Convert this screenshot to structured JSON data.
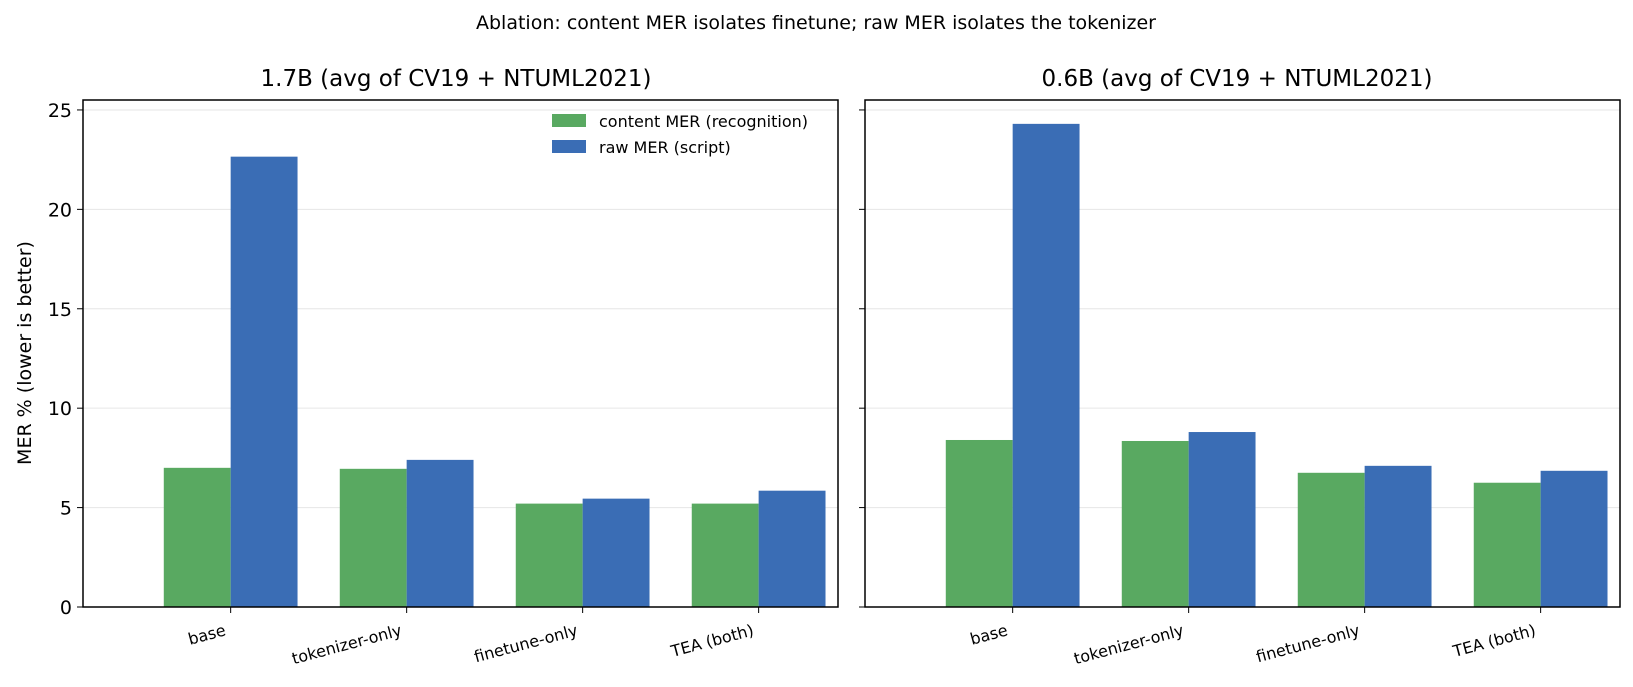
{
  "figure": {
    "title": "Ablation: content MER isolates finetune; raw MER isolates the tokenizer",
    "colors": {
      "content": "#59a961",
      "raw": "#3a6db5",
      "grid": "#e6e6e6",
      "axis": "#000000"
    }
  },
  "chart_data": [
    {
      "type": "bar",
      "title": "1.7B  (avg of CV19 + NTUML2021)",
      "xlabel": "",
      "ylabel": "MER %  (lower is better)",
      "ylim": [
        0,
        25.5
      ],
      "yticks": [
        0,
        5,
        10,
        15,
        20,
        25
      ],
      "grid": "y",
      "legend": "top-right",
      "categories": [
        "base",
        "tokenizer-only",
        "finetune-only",
        "TEA (both)"
      ],
      "series": [
        {
          "name": "content MER (recognition)",
          "values": [
            7.0,
            6.95,
            5.2,
            5.2
          ]
        },
        {
          "name": "raw MER (script)",
          "values": [
            22.65,
            7.4,
            5.45,
            5.85
          ]
        }
      ]
    },
    {
      "type": "bar",
      "title": "0.6B  (avg of CV19 + NTUML2021)",
      "xlabel": "",
      "ylabel": "",
      "ylim": [
        0,
        25.5
      ],
      "yticks": [
        0,
        5,
        10,
        15,
        20,
        25
      ],
      "grid": "y",
      "legend": "",
      "categories": [
        "base",
        "tokenizer-only",
        "finetune-only",
        "TEA (both)"
      ],
      "series": [
        {
          "name": "",
          "values": [
            8.4,
            8.35,
            6.75,
            6.25
          ]
        },
        {
          "name": "",
          "values": [
            24.3,
            8.8,
            7.1,
            6.85
          ]
        }
      ]
    }
  ]
}
